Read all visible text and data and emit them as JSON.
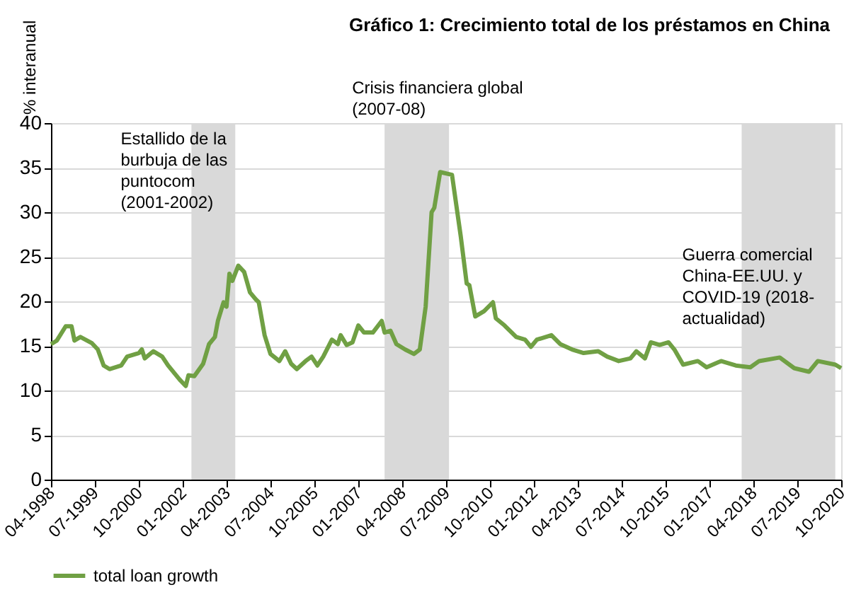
{
  "chart_data": {
    "type": "line",
    "title": "Gráfico 1: Crecimiento total de los préstamos en China",
    "ylabel": "% interanual",
    "x": [
      "1998-04",
      "1998-06",
      "1998-09",
      "1998-11",
      "1998-12",
      "1999-02",
      "1999-06",
      "1999-08",
      "1999-10",
      "1999-12",
      "2000-04",
      "2000-06",
      "2000-10",
      "2000-11",
      "2000-12",
      "2001-03",
      "2001-06",
      "2001-08",
      "2001-12",
      "2002-02",
      "2002-03",
      "2002-05",
      "2002-08",
      "2002-10",
      "2002-12",
      "2003-01",
      "2003-03",
      "2003-04",
      "2003-05",
      "2003-06",
      "2003-08",
      "2003-10",
      "2003-12",
      "2004-02",
      "2004-03",
      "2004-05",
      "2004-07",
      "2004-10",
      "2004-12",
      "2005-02",
      "2005-04",
      "2005-07",
      "2005-09",
      "2005-11",
      "2006-01",
      "2006-04",
      "2006-06",
      "2006-07",
      "2006-09",
      "2006-11",
      "2007-01",
      "2007-03",
      "2007-06",
      "2007-09",
      "2007-10",
      "2007-12",
      "2008-02",
      "2008-05",
      "2008-08",
      "2008-10",
      "2008-12",
      "2009-02",
      "2009-03",
      "2009-05",
      "2009-09",
      "2009-12",
      "2010-02",
      "2010-03",
      "2010-05",
      "2010-08",
      "2010-11",
      "2010-12",
      "2011-03",
      "2011-07",
      "2011-10",
      "2011-12",
      "2012-02",
      "2012-07",
      "2012-10",
      "2013-02",
      "2013-06",
      "2013-11",
      "2014-02",
      "2014-06",
      "2014-10",
      "2014-12",
      "2015-03",
      "2015-05",
      "2015-08",
      "2015-11",
      "2016-01",
      "2016-04",
      "2016-09",
      "2016-12",
      "2017-05",
      "2017-10",
      "2018-03",
      "2018-06",
      "2019-01",
      "2019-06",
      "2019-11",
      "2020-02",
      "2020-08",
      "2020-10"
    ],
    "series": [
      {
        "name": "total loan growth",
        "color": "#70a044",
        "values": [
          15.2,
          15.6,
          17.2,
          17.2,
          15.6,
          16.0,
          15.3,
          14.6,
          12.8,
          12.4,
          12.8,
          13.8,
          14.2,
          14.6,
          13.6,
          14.4,
          13.8,
          12.8,
          11.2,
          10.5,
          11.7,
          11.6,
          13.0,
          15.2,
          16.0,
          17.8,
          19.9,
          19.4,
          23.1,
          22.3,
          24.0,
          23.3,
          21.0,
          20.2,
          19.9,
          16.2,
          14.1,
          13.3,
          14.4,
          13.0,
          12.4,
          13.3,
          13.8,
          12.8,
          13.8,
          15.7,
          15.2,
          16.2,
          15.1,
          15.4,
          17.3,
          16.5,
          16.5,
          17.8,
          16.5,
          16.7,
          15.2,
          14.6,
          14.1,
          14.6,
          19.4,
          30.0,
          30.5,
          34.5,
          34.2,
          27.3,
          22.0,
          21.8,
          18.3,
          18.9,
          19.9,
          18.1,
          17.3,
          16.0,
          15.7,
          14.9,
          15.7,
          16.2,
          15.2,
          14.6,
          14.2,
          14.4,
          13.8,
          13.3,
          13.6,
          14.4,
          13.6,
          15.4,
          15.1,
          15.4,
          14.6,
          12.9,
          13.3,
          12.6,
          13.3,
          12.8,
          12.6,
          13.3,
          13.7,
          12.5,
          12.1,
          13.3,
          12.9,
          12.5
        ]
      }
    ],
    "xlim": [
      "1998-04",
      "2020-10"
    ],
    "xticks": [
      {
        "value": "1998-04",
        "label": "04-1998"
      },
      {
        "value": "1999-07",
        "label": "07-1999"
      },
      {
        "value": "2000-10",
        "label": "10-2000"
      },
      {
        "value": "2002-01",
        "label": "01-2002"
      },
      {
        "value": "2003-04",
        "label": "04-2003"
      },
      {
        "value": "2004-07",
        "label": "07-2004"
      },
      {
        "value": "2005-10",
        "label": "10-2005"
      },
      {
        "value": "2007-01",
        "label": "01-2007"
      },
      {
        "value": "2008-04",
        "label": "04-2008"
      },
      {
        "value": "2009-07",
        "label": "07-2009"
      },
      {
        "value": "2010-10",
        "label": "10-2010"
      },
      {
        "value": "2012-01",
        "label": "01-2012"
      },
      {
        "value": "2013-04",
        "label": "04-2013"
      },
      {
        "value": "2014-07",
        "label": "07-2014"
      },
      {
        "value": "2015-10",
        "label": "10-2015"
      },
      {
        "value": "2017-01",
        "label": "01-2017"
      },
      {
        "value": "2018-04",
        "label": "04-2018"
      },
      {
        "value": "2019-07",
        "label": "07-2019"
      },
      {
        "value": "2020-10",
        "label": "10-2020"
      }
    ],
    "ylim": [
      0,
      40
    ],
    "yticks": [
      0,
      5,
      10,
      15,
      20,
      25,
      30,
      35,
      40
    ],
    "bands": [
      {
        "axis": "x",
        "from": "2002-04",
        "to": "2003-07",
        "label": "Estallido de la\nburbuja de las\npuntocom\n(2001-2002)",
        "color": "#d9d9d9"
      },
      {
        "axis": "x",
        "from": "2007-10",
        "to": "2009-08",
        "label": "Crisis financiera global\n(2007-08)",
        "color": "#d9d9d9"
      },
      {
        "axis": "x",
        "from": "2017-12",
        "to": "2020-08",
        "label": "Guerra comercial\nChina-EE.UU. y\nCOVID-19 (2018-\nactualidad)",
        "color": "#d9d9d9"
      }
    ],
    "grid": "y",
    "legend": "bottom left",
    "marker": "none",
    "line_style": "solid"
  }
}
